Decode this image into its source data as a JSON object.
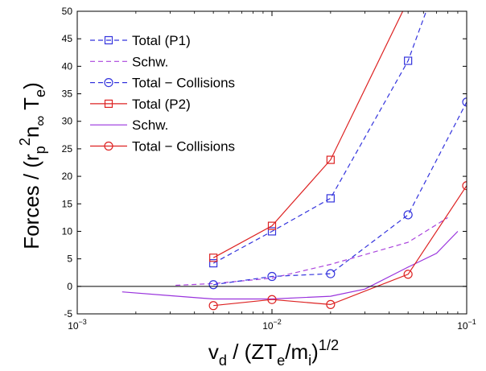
{
  "chart_data": {
    "type": "line",
    "xscale": "log",
    "xlim": [
      0.001,
      0.1
    ],
    "ylim": [
      -5,
      50
    ],
    "grid": false,
    "legend_position": "top-left",
    "xticks": [
      {
        "value": 0.001,
        "base": "10",
        "exp": "−3"
      },
      {
        "value": 0.01,
        "base": "10",
        "exp": "−2"
      },
      {
        "value": 0.1,
        "base": "10",
        "exp": "−1"
      }
    ],
    "yticks": [
      -5,
      0,
      5,
      10,
      15,
      20,
      25,
      30,
      35,
      40,
      45,
      50
    ],
    "xlabel_parts": [
      {
        "t": "v"
      },
      {
        "t": "d",
        "sub": true
      },
      {
        "t": " / (ZT"
      },
      {
        "t": "e",
        "sub": true
      },
      {
        "t": "/m"
      },
      {
        "t": "i",
        "sub": true
      },
      {
        "t": ")"
      },
      {
        "t": "1/2",
        "sup": true
      }
    ],
    "ylabel_parts": [
      {
        "t": "Forces / (r"
      },
      {
        "t": "p",
        "sub": true
      },
      {
        "t": "2",
        "sup": true
      },
      {
        "t": "n"
      },
      {
        "t": "∞",
        "sub": true
      },
      {
        "t": " T"
      },
      {
        "t": "e",
        "sub": true
      },
      {
        "t": ")"
      }
    ],
    "series": [
      {
        "name": "Total (P1)",
        "color": "#3333dd",
        "dash": "dashed",
        "marker": "square",
        "x": [
          0.005,
          0.01,
          0.02,
          0.05,
          0.065
        ],
        "y": [
          4.2,
          10,
          16,
          41,
          52
        ]
      },
      {
        "name": "Schw.",
        "color": "#aa44dd",
        "dash": "dashed",
        "marker": "none",
        "x": [
          0.0032,
          0.005,
          0.01,
          0.02,
          0.05,
          0.08
        ],
        "y": [
          0.2,
          0.5,
          1.5,
          4,
          8,
          12.5
        ]
      },
      {
        "name": "Total − Collisions",
        "color": "#3333dd",
        "dash": "dashed",
        "marker": "circle",
        "x": [
          0.005,
          0.01,
          0.02,
          0.05,
          0.1
        ],
        "y": [
          0.3,
          1.8,
          2.3,
          13,
          33.5
        ]
      },
      {
        "name": "Total (P2)",
        "color": "#dd2222",
        "dash": "solid",
        "marker": "square",
        "x": [
          0.005,
          0.01,
          0.02,
          0.05
        ],
        "y": [
          5.2,
          11,
          23,
          52
        ]
      },
      {
        "name": "Schw.",
        "color": "#9933dd",
        "dash": "solid",
        "marker": "none",
        "x": [
          0.0017,
          0.003,
          0.005,
          0.01,
          0.02,
          0.03,
          0.05,
          0.07,
          0.09
        ],
        "y": [
          -1,
          -1.7,
          -2.3,
          -2.3,
          -1.8,
          -0.5,
          3.5,
          6,
          10
        ]
      },
      {
        "name": "Total − Collisions",
        "color": "#dd2222",
        "dash": "solid",
        "marker": "circle",
        "x": [
          0.005,
          0.01,
          0.02,
          0.05,
          0.1
        ],
        "y": [
          -3.5,
          -2.4,
          -3.3,
          2.2,
          18.3
        ]
      }
    ]
  }
}
